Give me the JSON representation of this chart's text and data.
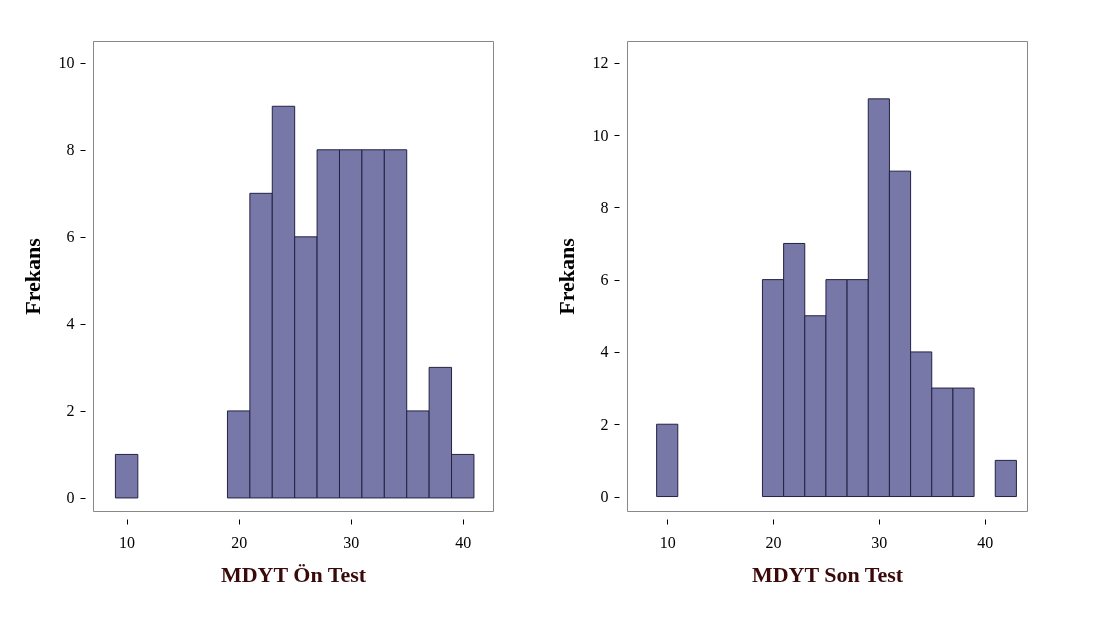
{
  "chart_data": [
    {
      "type": "histogram",
      "xlabel": "MDYT Ön Test",
      "ylabel": "Frekans",
      "color": "#7878a8",
      "bins": [
        9,
        11,
        13,
        15,
        17,
        19,
        21,
        23,
        25,
        27,
        29,
        31,
        33,
        35,
        37,
        39,
        41
      ],
      "values": [
        1,
        0,
        0,
        0,
        0,
        2,
        7,
        9,
        6,
        8,
        8,
        8,
        8,
        2,
        3,
        1
      ],
      "xlim": [
        7,
        42.7
      ],
      "xticks": [
        10,
        20,
        30,
        40
      ],
      "ylim": [
        -0.3,
        10.5
      ],
      "yticks": [
        0,
        2,
        4,
        6,
        8,
        10
      ],
      "grid": false
    },
    {
      "type": "histogram",
      "xlabel": "MDYT Son Test",
      "ylabel": "Frekans",
      "color": "#7878a8",
      "bins": [
        9,
        11,
        13,
        15,
        17,
        19,
        21,
        23,
        25,
        27,
        29,
        31,
        33,
        35,
        37,
        39,
        41,
        43
      ],
      "values": [
        2,
        0,
        0,
        0,
        0,
        6,
        7,
        5,
        6,
        6,
        11,
        9,
        4,
        3,
        3,
        0,
        1
      ],
      "xlim": [
        6.2,
        44
      ],
      "xticks": [
        10,
        20,
        30,
        40
      ],
      "ylim": [
        -0.4,
        12.6
      ],
      "yticks": [
        0,
        2,
        4,
        6,
        8,
        10,
        12
      ],
      "grid": false
    }
  ]
}
